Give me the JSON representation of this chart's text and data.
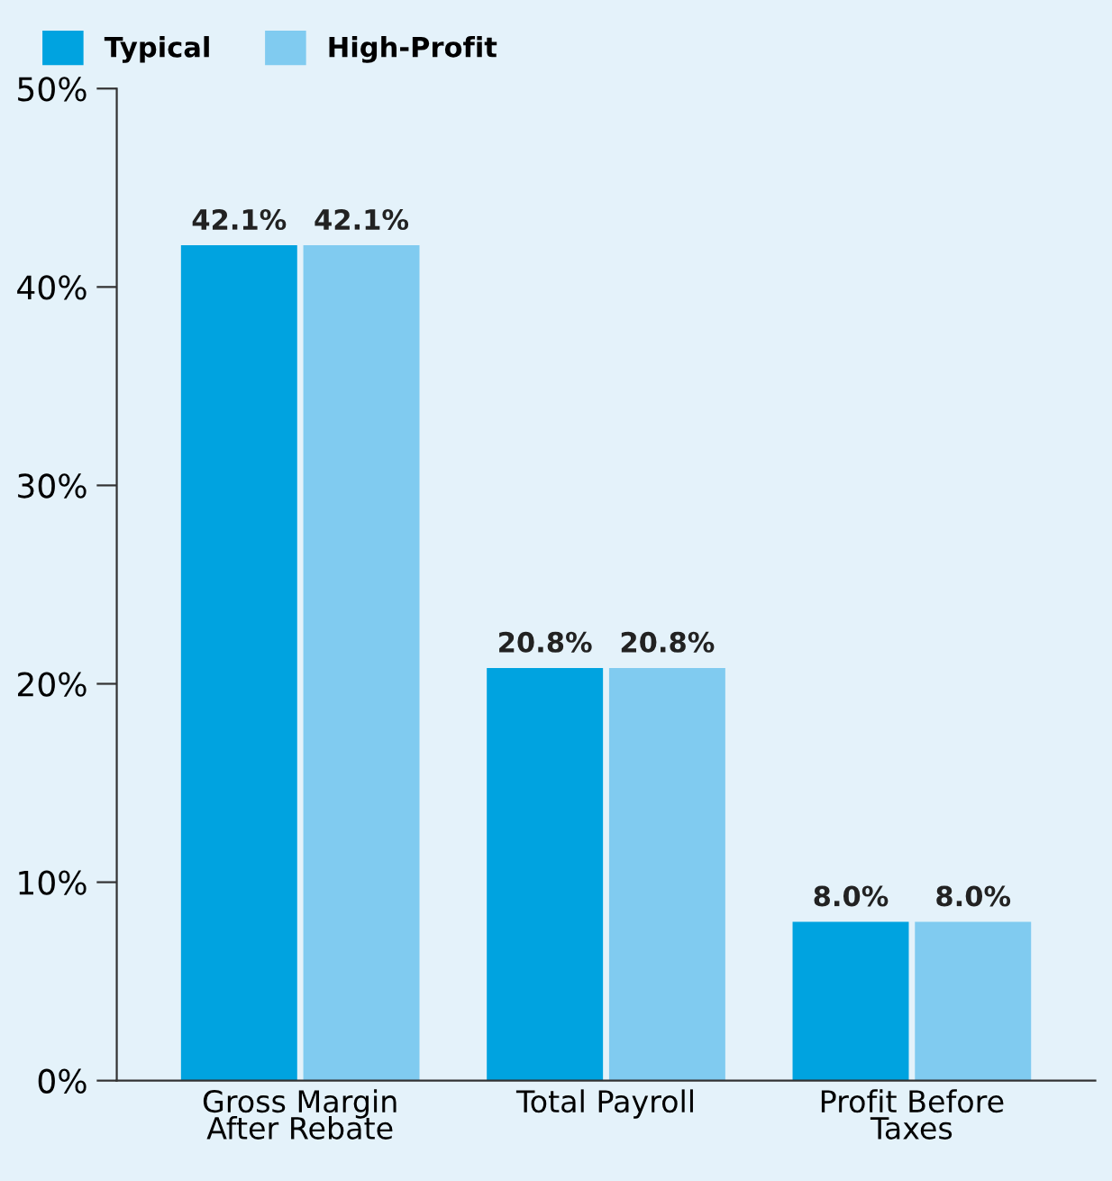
{
  "chart_data": {
    "type": "bar",
    "categories": [
      "Gross Margin\nAfter Rebate",
      "Total Payroll",
      "Profit Before\nTaxes"
    ],
    "series": [
      {
        "name": "Typical",
        "color": "#00a3e0",
        "values": [
          42.1,
          20.8,
          8.0
        ],
        "value_labels": [
          "42.1%",
          "20.8%",
          "8.0%"
        ]
      },
      {
        "name": "High-Profit",
        "color": "#80cbf0",
        "values": [
          42.1,
          20.8,
          8.0
        ],
        "value_labels": [
          "42.1%",
          "20.8%",
          "8.0%"
        ]
      }
    ],
    "ylim": [
      0,
      50
    ],
    "yticks": [
      {
        "value": 0,
        "label": "0%"
      },
      {
        "value": 10,
        "label": "10%"
      },
      {
        "value": 20,
        "label": "20%"
      },
      {
        "value": 30,
        "label": "30%"
      },
      {
        "value": 40,
        "label": "40%"
      },
      {
        "value": 50,
        "label": "50%"
      }
    ],
    "grid": false,
    "legend": "top left"
  }
}
